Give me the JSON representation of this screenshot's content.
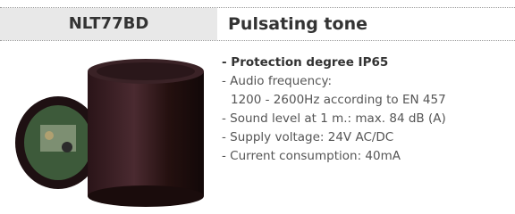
{
  "header": {
    "code": "NLT77BD",
    "title": "Pulsating tone"
  },
  "features": [
    {
      "text": "- Protection degree IP65",
      "bold": true
    },
    {
      "text": "- Audio frequency:",
      "continuation": "1200 - 2600Hz according to EN 457"
    },
    {
      "text": "- Sound level at 1 m.: max. 84 dB (A)"
    },
    {
      "text": "- Supply voltage: 24V AC/DC"
    },
    {
      "text": "- Current consumption: 40mA"
    }
  ]
}
